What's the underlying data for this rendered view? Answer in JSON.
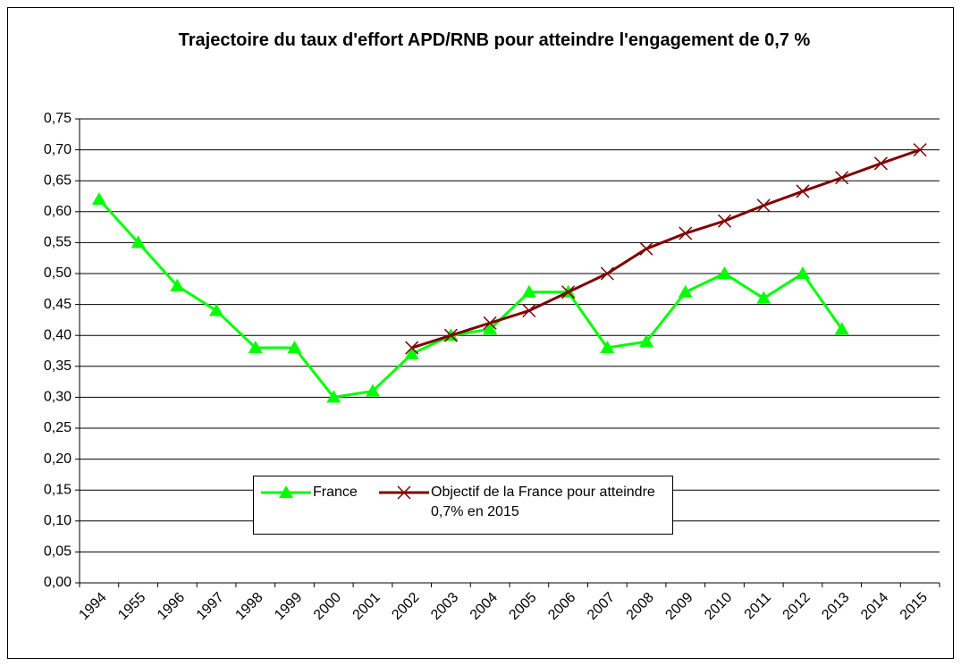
{
  "chart_data": {
    "type": "line",
    "title": "Trajectoire du taux d'effort APD/RNB pour atteindre l'engagement de 0,7 %",
    "categories": [
      "1994",
      "1955",
      "1996",
      "1997",
      "1998",
      "1999",
      "2000",
      "2001",
      "2002",
      "2003",
      "2004",
      "2005",
      "2006",
      "2007",
      "2008",
      "2009",
      "2010",
      "2011",
      "2012",
      "2013",
      "2014",
      "2015"
    ],
    "series": [
      {
        "name": "France",
        "color": "#00ff00",
        "marker": "triangle",
        "values": [
          0.62,
          0.55,
          0.48,
          0.44,
          0.38,
          0.38,
          0.3,
          0.31,
          0.37,
          0.4,
          0.41,
          0.47,
          0.47,
          0.38,
          0.39,
          0.47,
          0.5,
          0.46,
          0.5,
          0.41,
          null,
          null
        ]
      },
      {
        "name": "Objectif de la France pour atteindre 0,7% en 2015",
        "color": "#800000",
        "marker": "x",
        "values": [
          null,
          null,
          null,
          null,
          null,
          null,
          null,
          null,
          0.38,
          0.4,
          0.42,
          0.44,
          0.47,
          0.5,
          0.54,
          0.565,
          0.585,
          0.61,
          0.633,
          0.655,
          0.678,
          0.7
        ]
      }
    ],
    "ylim": [
      0,
      0.75
    ],
    "yticks": [
      {
        "value": 0,
        "label": "0,00"
      },
      {
        "value": 0.05,
        "label": "0,05"
      },
      {
        "value": 0.1,
        "label": "0,10"
      },
      {
        "value": 0.15,
        "label": "0,15"
      },
      {
        "value": 0.2,
        "label": "0,20"
      },
      {
        "value": 0.25,
        "label": "0,25"
      },
      {
        "value": 0.3,
        "label": "0,30"
      },
      {
        "value": 0.35,
        "label": "0,35"
      },
      {
        "value": 0.4,
        "label": "0,40"
      },
      {
        "value": 0.45,
        "label": "0,45"
      },
      {
        "value": 0.5,
        "label": "0,50"
      },
      {
        "value": 0.55,
        "label": "0,55"
      },
      {
        "value": 0.6,
        "label": "0,60"
      },
      {
        "value": 0.65,
        "label": "0,65"
      },
      {
        "value": 0.7,
        "label": "0,70"
      },
      {
        "value": 0.75,
        "label": "0,75"
      }
    ],
    "grid": true
  }
}
